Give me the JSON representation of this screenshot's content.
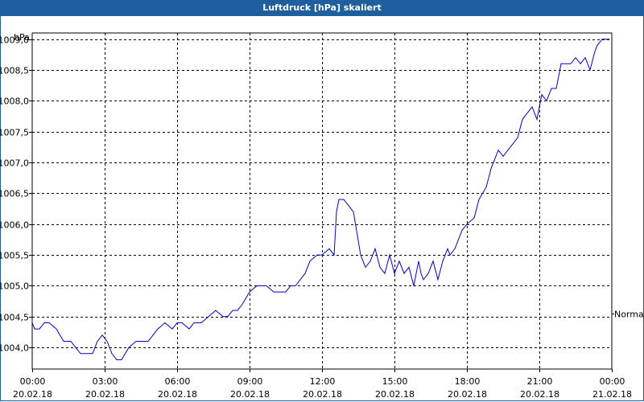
{
  "title": "Luftdruck [hPa] skaliert",
  "colors": {
    "title_bg": "#1f5f9e",
    "line": "#0000cc",
    "grid": "#000000",
    "background": "#ffffff"
  },
  "chart_data": {
    "type": "line",
    "title": "Luftdruck [hPa] skaliert",
    "ylabel": "hPa",
    "xlabel": "",
    "ylim": [
      1003.65,
      1009.1
    ],
    "xlim": [
      0,
      24
    ],
    "grid": true,
    "y_ticks": [
      "1004,0",
      "1004,5",
      "1005,0",
      "1005,5",
      "1006,0",
      "1006,5",
      "1007,0",
      "1007,5",
      "1008,0",
      "1008,5",
      "1009,0"
    ],
    "y_tick_values": [
      1004.0,
      1004.5,
      1005.0,
      1005.5,
      1006.0,
      1006.5,
      1007.0,
      1007.5,
      1008.0,
      1008.5,
      1009.0
    ],
    "x_ticks": [
      {
        "time": "00:00",
        "date": "20.02.18",
        "hour": 0
      },
      {
        "time": "03:00",
        "date": "20.02.18",
        "hour": 3
      },
      {
        "time": "06:00",
        "date": "20.02.18",
        "hour": 6
      },
      {
        "time": "09:00",
        "date": "20.02.18",
        "hour": 9
      },
      {
        "time": "12:00",
        "date": "20.02.18",
        "hour": 12
      },
      {
        "time": "15:00",
        "date": "20.02.18",
        "hour": 15
      },
      {
        "time": "18:00",
        "date": "20.02.18",
        "hour": 18
      },
      {
        "time": "21:00",
        "date": "20.02.18",
        "hour": 21
      },
      {
        "time": "00:00",
        "date": "21.02.18",
        "hour": 24
      }
    ],
    "reference_line": {
      "label": "Normal",
      "value": 1004.55
    },
    "series": [
      {
        "x": [
          0,
          0.1,
          0.3,
          0.5,
          0.7,
          1.0,
          1.3,
          1.6,
          1.8,
          2.0,
          2.2,
          2.5,
          2.7,
          2.9,
          3.1,
          3.3,
          3.5,
          3.7,
          4.0,
          4.3,
          4.6,
          4.8,
          5.0,
          5.2,
          5.5,
          5.8,
          6.0,
          6.2,
          6.5,
          6.7,
          7.0,
          7.3,
          7.6,
          7.9,
          8.1,
          8.3,
          8.5,
          8.7,
          9.0,
          9.3,
          9.7,
          10.0,
          10.2,
          10.5,
          10.7,
          10.9,
          11.1,
          11.3,
          11.5,
          11.8,
          12.0,
          12.3,
          12.5,
          12.6,
          12.7,
          12.9,
          13.1,
          13.3,
          13.6,
          13.8,
          14.0,
          14.2,
          14.4,
          14.6,
          14.8,
          15.0,
          15.2,
          15.3,
          15.4,
          15.6,
          15.8,
          16.0,
          16.1,
          16.2,
          16.4,
          16.6,
          16.8,
          17.0,
          17.2,
          17.3,
          17.5,
          17.8,
          18.0,
          18.3,
          18.5,
          18.8,
          19.0,
          19.3,
          19.5,
          19.7,
          19.9,
          20.1,
          20.3,
          20.5,
          20.7,
          20.9,
          21.1,
          21.3,
          21.5,
          21.7,
          21.9,
          22.1,
          22.3,
          22.5,
          22.7,
          22.9,
          23.1,
          23.3,
          23.4,
          23.6,
          23.8,
          23.9
        ],
        "values": [
          1004.4,
          1004.3,
          1004.3,
          1004.4,
          1004.4,
          1004.3,
          1004.1,
          1004.1,
          1004.0,
          1003.9,
          1003.9,
          1003.9,
          1004.1,
          1004.2,
          1004.1,
          1003.9,
          1003.8,
          1003.8,
          1004.0,
          1004.1,
          1004.1,
          1004.1,
          1004.2,
          1004.3,
          1004.4,
          1004.3,
          1004.4,
          1004.4,
          1004.3,
          1004.4,
          1004.4,
          1004.5,
          1004.6,
          1004.5,
          1004.5,
          1004.6,
          1004.6,
          1004.7,
          1004.9,
          1005.0,
          1005.0,
          1004.9,
          1004.9,
          1004.9,
          1005.0,
          1005.0,
          1005.1,
          1005.2,
          1005.4,
          1005.5,
          1005.5,
          1005.6,
          1005.5,
          1006.2,
          1006.4,
          1006.4,
          1006.3,
          1006.2,
          1005.5,
          1005.3,
          1005.4,
          1005.6,
          1005.3,
          1005.2,
          1005.5,
          1005.2,
          1005.4,
          1005.3,
          1005.2,
          1005.3,
          1005.0,
          1005.4,
          1005.2,
          1005.1,
          1005.2,
          1005.4,
          1005.1,
          1005.4,
          1005.6,
          1005.5,
          1005.6,
          1005.9,
          1006.0,
          1006.1,
          1006.4,
          1006.6,
          1006.9,
          1007.2,
          1007.1,
          1007.2,
          1007.3,
          1007.4,
          1007.7,
          1007.8,
          1007.9,
          1007.7,
          1008.1,
          1008.0,
          1008.2,
          1008.2,
          1008.6,
          1008.6,
          1008.6,
          1008.7,
          1008.6,
          1008.7,
          1008.5,
          1008.8,
          1008.9,
          1009.0,
          1009.0,
          1009.0
        ]
      }
    ]
  }
}
